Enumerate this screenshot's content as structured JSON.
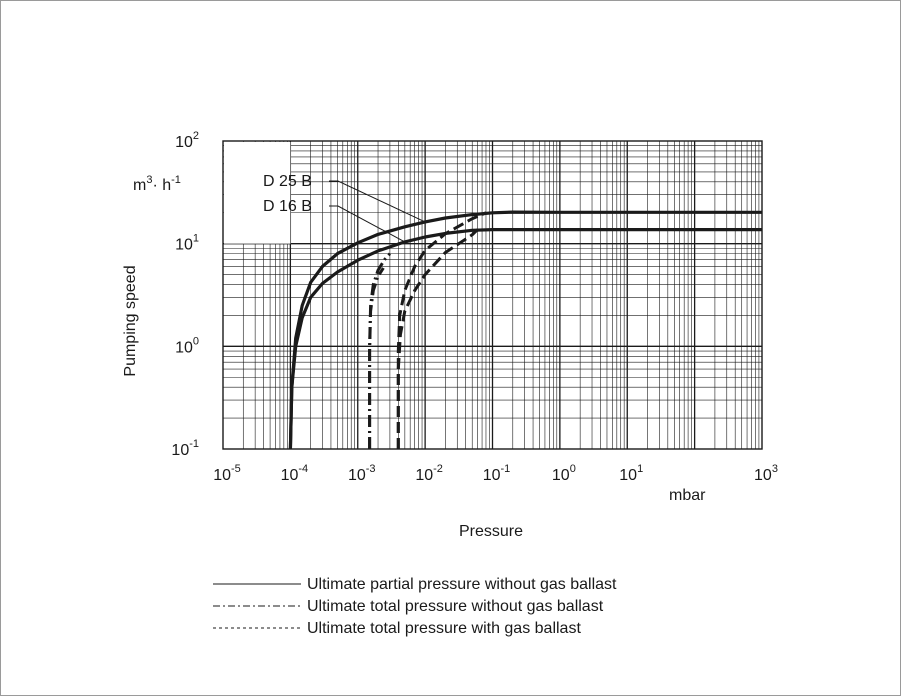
{
  "chart_data": {
    "type": "line",
    "x_scale": "log",
    "y_scale": "log",
    "xlim": [
      1e-05,
      1000
    ],
    "ylim": [
      0.1,
      100
    ],
    "xlabel": "Pressure",
    "ylabel": "Pumping speed",
    "x_unit": "mbar",
    "y_unit": "m3·h-1",
    "grid": true,
    "x_ticks": [
      {
        "base": "10",
        "exp": "-5"
      },
      {
        "base": "10",
        "exp": "-4"
      },
      {
        "base": "10",
        "exp": "-3"
      },
      {
        "base": "10",
        "exp": "-2"
      },
      {
        "base": "10",
        "exp": "-1"
      },
      {
        "base": "10",
        "exp": "0"
      },
      {
        "base": "10",
        "exp": "1"
      },
      {
        "base": "10",
        "exp": "3"
      }
    ],
    "y_ticks": [
      {
        "base": "10",
        "exp": "2"
      },
      {
        "base": "10",
        "exp": "1"
      },
      {
        "base": "10",
        "exp": "0"
      },
      {
        "base": "10",
        "exp": "-1"
      }
    ],
    "curve_labels": [
      "D 25 B",
      "D 16 B"
    ],
    "series": [
      {
        "name": "D 25 B",
        "line": "solid",
        "x": [
          0.0001,
          0.000105,
          0.00012,
          0.00015,
          0.0002,
          0.0003,
          0.0005,
          0.001,
          0.002,
          0.005,
          0.01,
          0.02,
          0.05,
          0.1,
          0.2,
          1,
          10,
          1000
        ],
        "y": [
          0.1,
          0.4,
          1.2,
          2.5,
          4.2,
          6.0,
          8.0,
          10.2,
          12.3,
          14.6,
          16.3,
          17.8,
          19.2,
          20.0,
          20.3,
          20.2,
          20.2,
          20.2
        ]
      },
      {
        "name": "D 16 B",
        "line": "solid",
        "x": [
          0.0001,
          0.000105,
          0.00012,
          0.00015,
          0.0002,
          0.0003,
          0.0005,
          0.001,
          0.002,
          0.005,
          0.01,
          0.02,
          0.05,
          0.1,
          1,
          1000
        ],
        "y": [
          0.1,
          0.4,
          1.0,
          1.9,
          3.0,
          4.1,
          5.3,
          6.9,
          8.5,
          10.4,
          11.6,
          12.6,
          13.5,
          13.7,
          13.7,
          13.7
        ]
      },
      {
        "name": "D 25 B",
        "line": "dashdot",
        "x": [
          0.0015,
          0.0015,
          0.00155,
          0.0017,
          0.002,
          0.0025,
          0.003
        ],
        "y": [
          0.1,
          1.0,
          2.5,
          4.0,
          5.5,
          7.0,
          8.0
        ]
      },
      {
        "name": "D 16 B",
        "line": "dashdot",
        "x": [
          0.0015,
          0.0015,
          0.00155,
          0.0017,
          0.002,
          0.0024
        ],
        "y": [
          0.1,
          0.9,
          2.2,
          3.5,
          4.8,
          5.8
        ]
      },
      {
        "name": "D 25 B",
        "line": "dashed",
        "x": [
          0.004,
          0.004,
          0.0042,
          0.005,
          0.007,
          0.01,
          0.02,
          0.05,
          0.08
        ],
        "y": [
          0.1,
          0.9,
          2.0,
          3.5,
          6.0,
          8.6,
          12.5,
          17.5,
          20.0
        ]
      },
      {
        "name": "D 16 B",
        "line": "dashed",
        "x": [
          0.004,
          0.004,
          0.0043,
          0.005,
          0.007,
          0.01,
          0.02,
          0.05,
          0.06
        ],
        "y": [
          0.1,
          0.6,
          1.3,
          2.2,
          3.5,
          5.0,
          8.2,
          12.2,
          13.7
        ]
      }
    ],
    "legend": [
      {
        "style": "solid",
        "label": "Ultimate partial pressure without gas ballast"
      },
      {
        "style": "dashdot",
        "label": "Ultimate total pressure without gas ballast"
      },
      {
        "style": "dashed",
        "label": "Ultimate total pressure with gas ballast"
      }
    ],
    "colors": {
      "lines": "#1a1a1a",
      "grid": "#1a1a1a",
      "frame": "#9a9a9a"
    }
  }
}
